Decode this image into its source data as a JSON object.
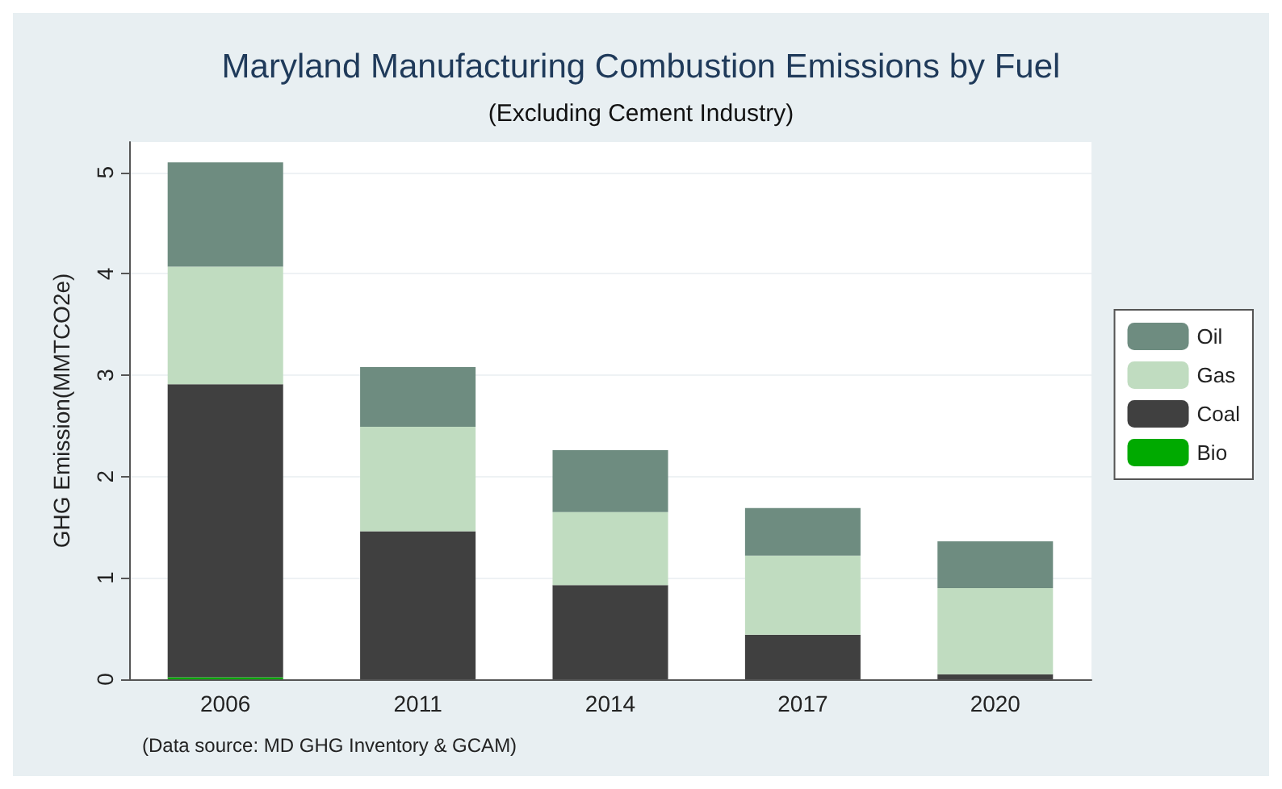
{
  "chart_data": {
    "type": "bar",
    "title": "Maryland Manufacturing Combustion Emissions by Fuel",
    "subtitle": "(Excluding Cement Industry)",
    "ylabel": "GHG Emission(MMTCO2e)",
    "annotations": [
      "(Data source: MD GHG Inventory & GCAM)"
    ],
    "categories": [
      "2006",
      "2011",
      "2014",
      "2017",
      "2020"
    ],
    "stacked": true,
    "series": [
      {
        "name": "Bio",
        "color": "#00aa00",
        "values": [
          0.02,
          0,
          0,
          0,
          0
        ]
      },
      {
        "name": "Coal",
        "color": "#404040",
        "values": [
          2.89,
          1.46,
          0.93,
          0.44,
          0.05
        ]
      },
      {
        "name": "Gas",
        "color": "#c0dcc0",
        "values": [
          1.16,
          1.03,
          0.72,
          0.78,
          0.85
        ]
      },
      {
        "name": "Oil",
        "color": "#6e8c80",
        "values": [
          1.03,
          0.59,
          0.61,
          0.47,
          0.46
        ]
      }
    ],
    "ylim": [
      0,
      5.3
    ],
    "yticks": [
      0,
      1,
      2,
      3,
      4,
      5
    ],
    "grid": "y",
    "legend": "right"
  }
}
